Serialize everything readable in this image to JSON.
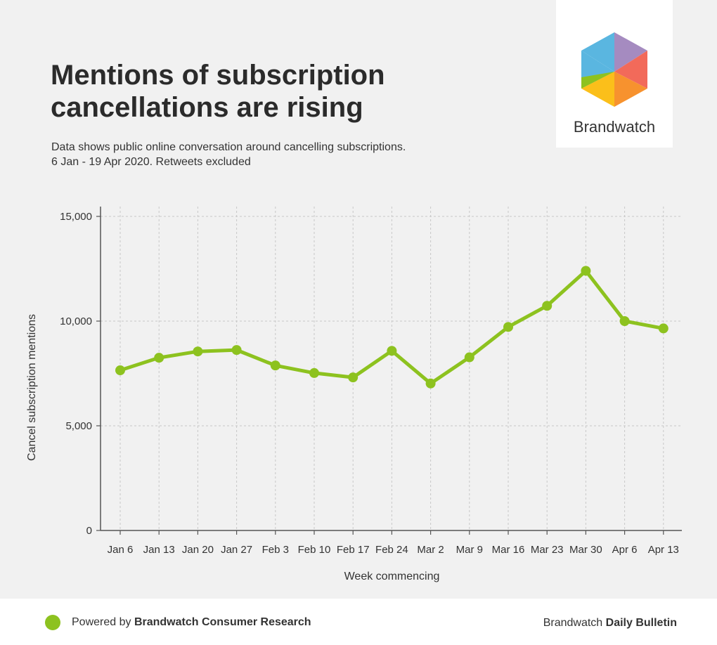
{
  "header": {
    "title_line1": "Mentions of subscription",
    "title_line2": "cancellations are rising",
    "subtitle_line1": "Data shows public online conversation around cancelling subscriptions.",
    "subtitle_line2": "6 Jan - 19 Apr 2020. Retweets excluded"
  },
  "logo": {
    "text": "Brandwatch",
    "icon": "brandwatch-hexagon-icon"
  },
  "chart_data": {
    "type": "line",
    "title": "",
    "xlabel": "Week commencing",
    "ylabel": "Cancel subscription mentions",
    "categories": [
      "Jan 6",
      "Jan 13",
      "Jan 20",
      "Jan 27",
      "Feb 3",
      "Feb 10",
      "Feb 17",
      "Feb 24",
      "Mar 2",
      "Mar 9",
      "Mar 16",
      "Mar 23",
      "Mar 30",
      "Apr 6",
      "Apr 13"
    ],
    "series": [
      {
        "values": [
          7650,
          8250,
          8550,
          8620,
          7880,
          7520,
          7310,
          8580,
          7020,
          8270,
          9720,
          10730,
          12400,
          10000,
          9650
        ]
      }
    ],
    "ylim": [
      0,
      15000
    ],
    "yticks": [
      0,
      5000,
      10000,
      15000
    ],
    "ytick_labels": [
      "0",
      "5,000",
      "10,000",
      "15,000"
    ],
    "grid": true,
    "line_color": "#8dc21f"
  },
  "footer": {
    "left_prefix": "Powered by ",
    "left_bold": "Brandwatch Consumer Research",
    "right_prefix": "Brandwatch ",
    "right_bold": "Daily Bulletin"
  }
}
